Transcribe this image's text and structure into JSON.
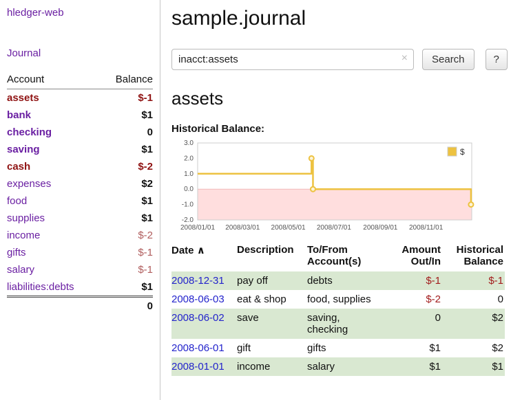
{
  "colors": {
    "link_purple": "#6a1fa2",
    "date_link_blue": "#2323cc",
    "negative_strong": "#8f1212",
    "negative_soft": "#b05d5d",
    "table_negative": "#a21c1c",
    "row_green": "#d9e8d1",
    "series_gold": "#edc240"
  },
  "sidebar": {
    "brand": "hledger-web",
    "journal_link": "Journal",
    "accounts_header": {
      "account": "Account",
      "balance": "Balance"
    },
    "accounts": [
      {
        "name": "assets",
        "balance": "$-1",
        "indent": 0,
        "bold": true,
        "negative_name": true,
        "balance_style": "neg-strong",
        "balance_bold": true
      },
      {
        "name": "bank",
        "balance": "$1",
        "indent": 1,
        "bold": true,
        "negative_name": false,
        "balance_style": "",
        "balance_bold": true
      },
      {
        "name": "checking",
        "balance": "0",
        "indent": 2,
        "bold": true,
        "negative_name": false,
        "balance_style": "",
        "balance_bold": true
      },
      {
        "name": "saving",
        "balance": "$1",
        "indent": 2,
        "bold": true,
        "negative_name": false,
        "balance_style": "",
        "balance_bold": true
      },
      {
        "name": "cash",
        "balance": "$-2",
        "indent": 1,
        "bold": true,
        "negative_name": true,
        "balance_style": "neg-strong",
        "balance_bold": true
      },
      {
        "name": "expenses",
        "balance": "$2",
        "indent": 0,
        "bold": false,
        "negative_name": false,
        "balance_style": "",
        "balance_bold": true
      },
      {
        "name": "food",
        "balance": "$1",
        "indent": 1,
        "bold": false,
        "negative_name": false,
        "balance_style": "",
        "balance_bold": true
      },
      {
        "name": "supplies",
        "balance": "$1",
        "indent": 1,
        "bold": false,
        "negative_name": false,
        "balance_style": "",
        "balance_bold": true
      },
      {
        "name": "income",
        "balance": "$-2",
        "indent": 0,
        "bold": false,
        "negative_name": false,
        "balance_style": "neg-soft",
        "balance_bold": false
      },
      {
        "name": "gifts",
        "balance": "$-1",
        "indent": 1,
        "bold": false,
        "negative_name": false,
        "balance_style": "neg-soft",
        "balance_bold": false
      },
      {
        "name": "salary",
        "balance": "$-1",
        "indent": 1,
        "bold": false,
        "negative_name": false,
        "balance_style": "neg-soft",
        "balance_bold": false
      },
      {
        "name": "liabilities:debts",
        "balance": "$1",
        "indent": 0,
        "bold": false,
        "negative_name": false,
        "balance_style": "",
        "balance_bold": true
      }
    ],
    "total": "0"
  },
  "main": {
    "title": "sample.journal",
    "search": {
      "value": "inacct:assets",
      "clear_icon": "×",
      "button_label": "Search",
      "help_label": "?"
    },
    "account_heading": "assets",
    "chart_title": "Historical Balance:"
  },
  "chart_data": {
    "type": "line",
    "step": true,
    "title": "Historical Balance:",
    "legend_position": "top-right",
    "series": [
      {
        "name": "$",
        "color": "#edc240",
        "points": [
          [
            "2008-01-01",
            1
          ],
          [
            "2008-06-01",
            2
          ],
          [
            "2008-06-03",
            0
          ],
          [
            "2008-12-31",
            -1
          ]
        ]
      }
    ],
    "ylim": [
      -2,
      3
    ],
    "yticks": [
      3.0,
      2.0,
      1.0,
      0.0,
      -1.0,
      -2.0
    ],
    "xlim": [
      "2008-01-01",
      "2009-01-01"
    ],
    "xticks": [
      "2008/01/01",
      "2008/03/01",
      "2008/05/01",
      "2008/07/01",
      "2008/09/01",
      "2008/11/01"
    ],
    "negative_region_fill": "#ffdede",
    "negative_region_line": "#f0b9b9",
    "plot_border": "#cccccc"
  },
  "register": {
    "headers": {
      "date": "Date",
      "sort_icon": "∧",
      "description": "Description",
      "tofrom_line1": "To/From",
      "tofrom_line2": "Account(s)",
      "amount_line1": "Amount",
      "amount_line2": "Out/In",
      "balance_line1": "Historical",
      "balance_line2": "Balance"
    },
    "rows": [
      {
        "date": "2008-12-31",
        "description": "pay off",
        "accounts": "debts",
        "amount": "$-1",
        "amount_negative": true,
        "balance": "$-1",
        "balance_negative": true
      },
      {
        "date": "2008-06-03",
        "description": "eat & shop",
        "accounts": "food, supplies",
        "amount": "$-2",
        "amount_negative": true,
        "balance": "0",
        "balance_negative": false
      },
      {
        "date": "2008-06-02",
        "description": "save",
        "accounts": "saving, checking",
        "amount": "0",
        "amount_negative": false,
        "balance": "$2",
        "balance_negative": false
      },
      {
        "date": "2008-06-01",
        "description": "gift",
        "accounts": "gifts",
        "amount": "$1",
        "amount_negative": false,
        "balance": "$2",
        "balance_negative": false
      },
      {
        "date": "2008-01-01",
        "description": "income",
        "accounts": "salary",
        "amount": "$1",
        "amount_negative": false,
        "balance": "$1",
        "balance_negative": false
      }
    ]
  }
}
